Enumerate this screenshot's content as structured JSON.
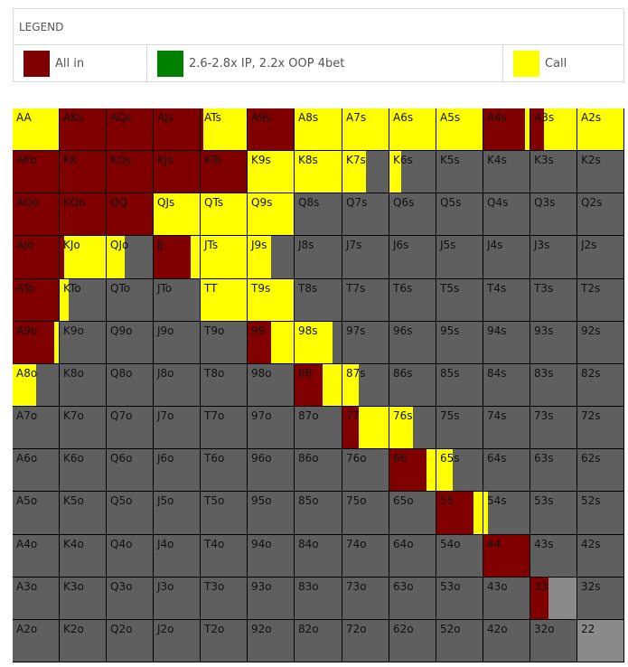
{
  "legend": {
    "title": "LEGEND",
    "items": [
      {
        "label": "All in",
        "color": "#800000"
      },
      {
        "label": "2.6-2.8x IP, 2.2x OOP 4bet",
        "color": "#008000"
      },
      {
        "label": "Call",
        "color": "#ffff00"
      }
    ]
  },
  "chart_data": {
    "type": "heatmap",
    "ranks": [
      "A",
      "K",
      "Q",
      "J",
      "T",
      "9",
      "8",
      "7",
      "6",
      "5",
      "4",
      "3",
      "2"
    ],
    "colors": {
      "allin": "#800000",
      "fourbet": "#008000",
      "call": "#ffff00",
      "fold": "#5f5f5f",
      "pair_fold": "#8a8a8a"
    },
    "rows": [
      [
        {
          "hand": "AA",
          "allin": 0,
          "call": 1
        },
        {
          "hand": "AKs",
          "allin": 1,
          "call": 0
        },
        {
          "hand": "AQs",
          "allin": 1,
          "call": 0
        },
        {
          "hand": "AJs",
          "allin": 1,
          "call": 0
        },
        {
          "hand": "ATs",
          "allin": 0.05,
          "call": 0.95
        },
        {
          "hand": "A9s",
          "allin": 1,
          "call": 0
        },
        {
          "hand": "A8s",
          "allin": 0,
          "call": 1
        },
        {
          "hand": "A7s",
          "allin": 0,
          "call": 1
        },
        {
          "hand": "A6s",
          "allin": 0,
          "call": 1
        },
        {
          "hand": "A5s",
          "allin": 0,
          "call": 1
        },
        {
          "hand": "A4s",
          "allin": 0.9,
          "call": 0.1
        },
        {
          "hand": "A3s",
          "allin": 0.3,
          "call": 0.7
        },
        {
          "hand": "A2s",
          "allin": 0,
          "call": 1
        }
      ],
      [
        {
          "hand": "AKo",
          "allin": 1,
          "call": 0
        },
        {
          "hand": "KK",
          "allin": 1,
          "call": 0
        },
        {
          "hand": "KQs",
          "allin": 1,
          "call": 0
        },
        {
          "hand": "KJs",
          "allin": 1,
          "call": 0
        },
        {
          "hand": "KTs",
          "allin": 1,
          "call": 0
        },
        {
          "hand": "K9s",
          "allin": 0,
          "call": 1
        },
        {
          "hand": "K8s",
          "allin": 0,
          "call": 1
        },
        {
          "hand": "K7s",
          "allin": 0,
          "call": 0.5
        },
        {
          "hand": "K6s",
          "allin": 0,
          "call": 0.25
        },
        {
          "hand": "K5s",
          "allin": 0,
          "call": 0
        },
        {
          "hand": "K4s",
          "allin": 0,
          "call": 0
        },
        {
          "hand": "K3s",
          "allin": 0,
          "call": 0
        },
        {
          "hand": "K2s",
          "allin": 0,
          "call": 0
        }
      ],
      [
        {
          "hand": "AQo",
          "allin": 1,
          "call": 0
        },
        {
          "hand": "KQo",
          "allin": 1,
          "call": 0
        },
        {
          "hand": "QQ",
          "allin": 1,
          "call": 0
        },
        {
          "hand": "QJs",
          "allin": 0,
          "call": 1
        },
        {
          "hand": "QTs",
          "allin": 0,
          "call": 1
        },
        {
          "hand": "Q9s",
          "allin": 0,
          "call": 1
        },
        {
          "hand": "Q8s",
          "allin": 0,
          "call": 0
        },
        {
          "hand": "Q7s",
          "allin": 0,
          "call": 0
        },
        {
          "hand": "Q6s",
          "allin": 0,
          "call": 0
        },
        {
          "hand": "Q5s",
          "allin": 0,
          "call": 0
        },
        {
          "hand": "Q4s",
          "allin": 0,
          "call": 0
        },
        {
          "hand": "Q3s",
          "allin": 0,
          "call": 0
        },
        {
          "hand": "Q2s",
          "allin": 0,
          "call": 0
        }
      ],
      [
        {
          "hand": "AJo",
          "allin": 1,
          "call": 0
        },
        {
          "hand": "KJo",
          "allin": 0.1,
          "call": 0.9
        },
        {
          "hand": "QJo",
          "allin": 0,
          "call": 0.4
        },
        {
          "hand": "JJ",
          "allin": 0.8,
          "call": 0.2
        },
        {
          "hand": "JTs",
          "allin": 0,
          "call": 1
        },
        {
          "hand": "J9s",
          "allin": 0,
          "call": 0.5
        },
        {
          "hand": "J8s",
          "allin": 0,
          "call": 0
        },
        {
          "hand": "J7s",
          "allin": 0,
          "call": 0
        },
        {
          "hand": "J6s",
          "allin": 0,
          "call": 0
        },
        {
          "hand": "J5s",
          "allin": 0,
          "call": 0
        },
        {
          "hand": "J4s",
          "allin": 0,
          "call": 0
        },
        {
          "hand": "J3s",
          "allin": 0,
          "call": 0
        },
        {
          "hand": "J2s",
          "allin": 0,
          "call": 0
        }
      ],
      [
        {
          "hand": "ATo",
          "allin": 1,
          "call": 0
        },
        {
          "hand": "KTo",
          "allin": 0,
          "call": 0.2
        },
        {
          "hand": "QTo",
          "allin": 0,
          "call": 0
        },
        {
          "hand": "JTo",
          "allin": 0,
          "call": 0
        },
        {
          "hand": "TT",
          "allin": 0,
          "call": 1
        },
        {
          "hand": "T9s",
          "allin": 0,
          "call": 1
        },
        {
          "hand": "T8s",
          "allin": 0,
          "call": 0
        },
        {
          "hand": "T7s",
          "allin": 0,
          "call": 0
        },
        {
          "hand": "T6s",
          "allin": 0,
          "call": 0
        },
        {
          "hand": "T5s",
          "allin": 0,
          "call": 0
        },
        {
          "hand": "T4s",
          "allin": 0,
          "call": 0
        },
        {
          "hand": "T3s",
          "allin": 0,
          "call": 0
        },
        {
          "hand": "T2s",
          "allin": 0,
          "call": 0
        }
      ],
      [
        {
          "hand": "A9o",
          "allin": 0.9,
          "call": 0.1
        },
        {
          "hand": "K9o",
          "allin": 0,
          "call": 0
        },
        {
          "hand": "Q9o",
          "allin": 0,
          "call": 0
        },
        {
          "hand": "J9o",
          "allin": 0,
          "call": 0
        },
        {
          "hand": "T9o",
          "allin": 0,
          "call": 0
        },
        {
          "hand": "99",
          "allin": 0.5,
          "call": 0.5
        },
        {
          "hand": "98s",
          "allin": 0,
          "call": 0.8
        },
        {
          "hand": "97s",
          "allin": 0,
          "call": 0
        },
        {
          "hand": "96s",
          "allin": 0,
          "call": 0
        },
        {
          "hand": "95s",
          "allin": 0,
          "call": 0
        },
        {
          "hand": "94s",
          "allin": 0,
          "call": 0
        },
        {
          "hand": "93s",
          "allin": 0,
          "call": 0
        },
        {
          "hand": "92s",
          "allin": 0,
          "call": 0
        }
      ],
      [
        {
          "hand": "A8o",
          "allin": 0,
          "call": 0.5
        },
        {
          "hand": "K8o",
          "allin": 0,
          "call": 0
        },
        {
          "hand": "Q8o",
          "allin": 0,
          "call": 0
        },
        {
          "hand": "J8o",
          "allin": 0,
          "call": 0
        },
        {
          "hand": "T8o",
          "allin": 0,
          "call": 0
        },
        {
          "hand": "98o",
          "allin": 0,
          "call": 0
        },
        {
          "hand": "88",
          "allin": 0.6,
          "call": 0.4
        },
        {
          "hand": "87s",
          "allin": 0,
          "call": 0.35
        },
        {
          "hand": "86s",
          "allin": 0,
          "call": 0
        },
        {
          "hand": "85s",
          "allin": 0,
          "call": 0
        },
        {
          "hand": "84s",
          "allin": 0,
          "call": 0
        },
        {
          "hand": "83s",
          "allin": 0,
          "call": 0
        },
        {
          "hand": "82s",
          "allin": 0,
          "call": 0
        }
      ],
      [
        {
          "hand": "A7o",
          "allin": 0,
          "call": 0
        },
        {
          "hand": "K7o",
          "allin": 0,
          "call": 0
        },
        {
          "hand": "Q7o",
          "allin": 0,
          "call": 0
        },
        {
          "hand": "J7o",
          "allin": 0,
          "call": 0
        },
        {
          "hand": "T7o",
          "allin": 0,
          "call": 0
        },
        {
          "hand": "97o",
          "allin": 0,
          "call": 0
        },
        {
          "hand": "87o",
          "allin": 0,
          "call": 0
        },
        {
          "hand": "77",
          "allin": 0.35,
          "call": 0.65
        },
        {
          "hand": "76s",
          "allin": 0,
          "call": 0.5
        },
        {
          "hand": "75s",
          "allin": 0,
          "call": 0
        },
        {
          "hand": "74s",
          "allin": 0,
          "call": 0
        },
        {
          "hand": "73s",
          "allin": 0,
          "call": 0
        },
        {
          "hand": "72s",
          "allin": 0,
          "call": 0
        }
      ],
      [
        {
          "hand": "A6o",
          "allin": 0,
          "call": 0
        },
        {
          "hand": "K6o",
          "allin": 0,
          "call": 0
        },
        {
          "hand": "Q6o",
          "allin": 0,
          "call": 0
        },
        {
          "hand": "J6o",
          "allin": 0,
          "call": 0
        },
        {
          "hand": "T6o",
          "allin": 0,
          "call": 0
        },
        {
          "hand": "96o",
          "allin": 0,
          "call": 0
        },
        {
          "hand": "86o",
          "allin": 0,
          "call": 0
        },
        {
          "hand": "76o",
          "allin": 0,
          "call": 0
        },
        {
          "hand": "66",
          "allin": 0.8,
          "call": 0.2
        },
        {
          "hand": "65s",
          "allin": 0,
          "call": 0.35
        },
        {
          "hand": "64s",
          "allin": 0,
          "call": 0
        },
        {
          "hand": "63s",
          "allin": 0,
          "call": 0
        },
        {
          "hand": "62s",
          "allin": 0,
          "call": 0
        }
      ],
      [
        {
          "hand": "A5o",
          "allin": 0,
          "call": 0
        },
        {
          "hand": "K5o",
          "allin": 0,
          "call": 0
        },
        {
          "hand": "Q5o",
          "allin": 0,
          "call": 0
        },
        {
          "hand": "J5o",
          "allin": 0,
          "call": 0
        },
        {
          "hand": "T5o",
          "allin": 0,
          "call": 0
        },
        {
          "hand": "95o",
          "allin": 0,
          "call": 0
        },
        {
          "hand": "85o",
          "allin": 0,
          "call": 0
        },
        {
          "hand": "75o",
          "allin": 0,
          "call": 0
        },
        {
          "hand": "65o",
          "allin": 0,
          "call": 0
        },
        {
          "hand": "55",
          "allin": 0.8,
          "call": 0.2
        },
        {
          "hand": "54s",
          "allin": 0,
          "call": 0.1
        },
        {
          "hand": "53s",
          "allin": 0,
          "call": 0
        },
        {
          "hand": "52s",
          "allin": 0,
          "call": 0
        }
      ],
      [
        {
          "hand": "A4o",
          "allin": 0,
          "call": 0
        },
        {
          "hand": "K4o",
          "allin": 0,
          "call": 0
        },
        {
          "hand": "Q4o",
          "allin": 0,
          "call": 0
        },
        {
          "hand": "J4o",
          "allin": 0,
          "call": 0
        },
        {
          "hand": "T4o",
          "allin": 0,
          "call": 0
        },
        {
          "hand": "94o",
          "allin": 0,
          "call": 0
        },
        {
          "hand": "84o",
          "allin": 0,
          "call": 0
        },
        {
          "hand": "74o",
          "allin": 0,
          "call": 0
        },
        {
          "hand": "64o",
          "allin": 0,
          "call": 0
        },
        {
          "hand": "54o",
          "allin": 0,
          "call": 0
        },
        {
          "hand": "44",
          "allin": 1,
          "call": 0
        },
        {
          "hand": "43s",
          "allin": 0,
          "call": 0
        },
        {
          "hand": "42s",
          "allin": 0,
          "call": 0
        }
      ],
      [
        {
          "hand": "A3o",
          "allin": 0,
          "call": 0
        },
        {
          "hand": "K3o",
          "allin": 0,
          "call": 0
        },
        {
          "hand": "Q3o",
          "allin": 0,
          "call": 0
        },
        {
          "hand": "J3o",
          "allin": 0,
          "call": 0
        },
        {
          "hand": "T3o",
          "allin": 0,
          "call": 0
        },
        {
          "hand": "93o",
          "allin": 0,
          "call": 0
        },
        {
          "hand": "83o",
          "allin": 0,
          "call": 0
        },
        {
          "hand": "73o",
          "allin": 0,
          "call": 0
        },
        {
          "hand": "63o",
          "allin": 0,
          "call": 0
        },
        {
          "hand": "53o",
          "allin": 0,
          "call": 0
        },
        {
          "hand": "43o",
          "allin": 0,
          "call": 0
        },
        {
          "hand": "33",
          "allin": 0.4,
          "call": 0
        },
        {
          "hand": "32s",
          "allin": 0,
          "call": 0
        }
      ],
      [
        {
          "hand": "A2o",
          "allin": 0,
          "call": 0
        },
        {
          "hand": "K2o",
          "allin": 0,
          "call": 0
        },
        {
          "hand": "Q2o",
          "allin": 0,
          "call": 0
        },
        {
          "hand": "J2o",
          "allin": 0,
          "call": 0
        },
        {
          "hand": "T2o",
          "allin": 0,
          "call": 0
        },
        {
          "hand": "92o",
          "allin": 0,
          "call": 0
        },
        {
          "hand": "82o",
          "allin": 0,
          "call": 0
        },
        {
          "hand": "72o",
          "allin": 0,
          "call": 0
        },
        {
          "hand": "62o",
          "allin": 0,
          "call": 0
        },
        {
          "hand": "52o",
          "allin": 0,
          "call": 0
        },
        {
          "hand": "42o",
          "allin": 0,
          "call": 0
        },
        {
          "hand": "32o",
          "allin": 0,
          "call": 0
        },
        {
          "hand": "22",
          "allin": 0,
          "call": 0
        }
      ]
    ]
  }
}
